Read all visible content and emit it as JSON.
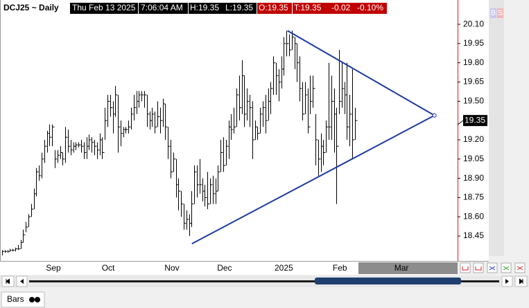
{
  "header": {
    "symbol": "DCJ25 ~ Daily",
    "date": "Thu Feb 13 2025",
    "time": "7:06:04 AM",
    "high": "H:19.35",
    "low": "L:19.35",
    "open": "O:19.35",
    "last": "T:19.35",
    "change": "-0.02",
    "change_pct": "-0.10%"
  },
  "side_buttons": [
    "B",
    "S"
  ],
  "tab": "Bars",
  "chart_data": {
    "type": "ohlc",
    "color": "#000000",
    "trend_color": "#1c3a9e",
    "ylim": [
      18.256,
      20.273
    ],
    "xlim": [
      0,
      173
    ],
    "yticks": [
      {
        "value": 20.1,
        "label": "20.10"
      },
      19.95,
      {
        "value": 19.8,
        "label": "19.80"
      },
      19.65,
      {
        "value": 19.5,
        "label": "19.50"
      },
      {
        "value": 19.2,
        "label": "19.20"
      },
      19.05,
      {
        "value": 18.9,
        "label": "18.90"
      },
      18.75,
      {
        "value": 18.6,
        "label": "18.60"
      },
      18.45
    ],
    "xticks": [
      {
        "value": 19.5,
        "label": "Sep"
      },
      {
        "value": 40.3,
        "label": "Oct"
      },
      {
        "value": 64.5,
        "label": "Nov"
      },
      {
        "value": 84.5,
        "label": "Dec"
      },
      {
        "value": 107,
        "label": "2025"
      },
      {
        "value": 128.3,
        "label": "Feb"
      },
      {
        "value": 151.7,
        "label": "Mar"
      }
    ],
    "last_price": 19.35,
    "high": [
      18.34,
      18.34,
      18.34,
      18.35,
      18.35,
      18.36,
      18.38,
      18.42,
      18.5,
      18.56,
      18.62,
      18.7,
      18.82,
      18.98,
      19.0,
      19.1,
      19.2,
      19.27,
      19.32,
      19.32,
      19.12,
      19.12,
      19.15,
      19.1,
      19.3,
      19.28,
      19.2,
      19.18,
      19.18,
      19.18,
      19.2,
      19.18,
      19.22,
      19.24,
      19.22,
      19.2,
      19.18,
      19.25,
      19.22,
      19.45,
      19.55,
      19.55,
      19.5,
      19.62,
      19.55,
      19.35,
      19.3,
      19.3,
      19.35,
      19.45,
      19.55,
      19.58,
      19.58,
      19.58,
      19.58,
      19.55,
      19.42,
      19.45,
      19.42,
      19.5,
      19.45,
      19.52,
      19.48,
      19.3,
      19.2,
      19.1,
      19.05,
      18.9,
      18.8,
      18.7,
      18.65,
      18.62,
      18.8,
      19.0,
      19.0,
      19.05,
      18.9,
      18.85,
      18.95,
      18.9,
      18.92,
      18.9,
      19.0,
      19.2,
      19.22,
      19.2,
      19.35,
      19.4,
      19.45,
      19.6,
      19.7,
      19.82,
      19.7,
      19.6,
      19.55,
      19.5,
      19.35,
      19.3,
      19.45,
      19.5,
      19.55,
      19.6,
      19.65,
      19.85,
      19.8,
      19.75,
      19.85,
      20.0,
      20.05,
      20.02,
      20.05,
      20.0,
      19.95,
      19.85,
      19.65,
      19.65,
      19.6,
      19.7,
      19.7,
      19.4,
      19.2,
      19.25,
      19.2,
      19.35,
      19.8,
      19.7,
      19.6,
      19.45,
      19.9,
      19.8,
      19.65,
      19.8,
      19.55,
      19.75,
      19.45
    ],
    "low": [
      18.3,
      18.32,
      18.32,
      18.33,
      18.33,
      18.33,
      18.34,
      18.35,
      18.4,
      18.48,
      18.52,
      18.6,
      18.66,
      18.76,
      18.88,
      18.9,
      19.02,
      19.1,
      19.15,
      19.15,
      18.98,
      19.02,
      19.05,
      19.0,
      19.02,
      19.1,
      19.08,
      19.1,
      19.12,
      19.14,
      19.1,
      19.05,
      19.05,
      19.12,
      19.1,
      19.08,
      19.05,
      19.08,
      19.05,
      19.2,
      19.3,
      19.38,
      19.25,
      19.38,
      19.1,
      19.15,
      19.22,
      19.25,
      19.25,
      19.28,
      19.35,
      19.4,
      19.45,
      19.5,
      19.45,
      19.3,
      19.28,
      19.3,
      19.25,
      19.3,
      19.25,
      19.3,
      19.2,
      19.05,
      18.9,
      18.95,
      18.75,
      18.65,
      18.6,
      18.5,
      18.5,
      18.45,
      18.52,
      18.7,
      18.75,
      18.78,
      18.72,
      18.68,
      18.66,
      18.7,
      18.7,
      18.7,
      18.8,
      18.95,
      18.95,
      19.0,
      19.05,
      19.2,
      19.25,
      19.3,
      19.35,
      19.4,
      19.3,
      19.35,
      19.3,
      19.05,
      19.2,
      19.2,
      19.25,
      19.3,
      19.25,
      19.35,
      19.4,
      19.55,
      19.55,
      19.5,
      19.6,
      19.7,
      19.85,
      19.85,
      19.9,
      19.75,
      19.65,
      19.5,
      19.35,
      19.4,
      19.25,
      19.4,
      19.45,
      19.0,
      18.92,
      18.95,
      19.0,
      19.1,
      19.2,
      19.2,
      19.1,
      18.7,
      19.4,
      19.45,
      19.4,
      19.2,
      19.15,
      19.05,
      19.2
    ],
    "close": [
      18.33,
      18.33,
      18.33,
      18.34,
      18.34,
      18.35,
      18.35,
      18.4,
      18.46,
      18.52,
      18.6,
      18.66,
      18.78,
      18.95,
      18.92,
      19.05,
      19.15,
      19.25,
      19.22,
      19.3,
      19.05,
      19.08,
      19.1,
      19.05,
      19.22,
      19.15,
      19.12,
      19.15,
      19.16,
      19.16,
      19.15,
      19.1,
      19.15,
      19.2,
      19.18,
      19.15,
      19.12,
      19.2,
      19.1,
      19.35,
      19.5,
      19.45,
      19.4,
      19.55,
      19.3,
      19.25,
      19.28,
      19.28,
      19.3,
      19.4,
      19.45,
      19.5,
      19.55,
      19.55,
      19.55,
      19.4,
      19.35,
      19.4,
      19.3,
      19.38,
      19.35,
      19.48,
      19.3,
      19.15,
      18.95,
      19.05,
      18.85,
      18.8,
      18.7,
      18.55,
      18.58,
      18.55,
      18.7,
      18.95,
      18.85,
      18.85,
      18.8,
      18.75,
      18.7,
      18.85,
      18.78,
      18.8,
      18.95,
      19.1,
      19.0,
      19.15,
      19.3,
      19.28,
      19.3,
      19.55,
      19.45,
      19.7,
      19.4,
      19.5,
      19.45,
      19.2,
      19.3,
      19.25,
      19.4,
      19.45,
      19.35,
      19.5,
      19.6,
      19.8,
      19.7,
      19.65,
      19.75,
      19.95,
      19.95,
      19.9,
      20.0,
      19.95,
      19.8,
      19.6,
      19.4,
      19.55,
      19.3,
      19.5,
      19.6,
      19.2,
      19.05,
      19.15,
      19.1,
      19.3,
      19.3,
      19.5,
      19.4,
      19.15,
      19.5,
      19.6,
      19.55,
      19.3,
      19.4,
      19.2,
      19.35
    ],
    "trendlines": [
      {
        "x": [
          108.4,
          164.2
        ],
        "y": [
          20.05,
          19.39
        ]
      },
      {
        "x": [
          72.1,
          164.2
        ],
        "y": [
          18.39,
          19.39
        ]
      }
    ]
  }
}
